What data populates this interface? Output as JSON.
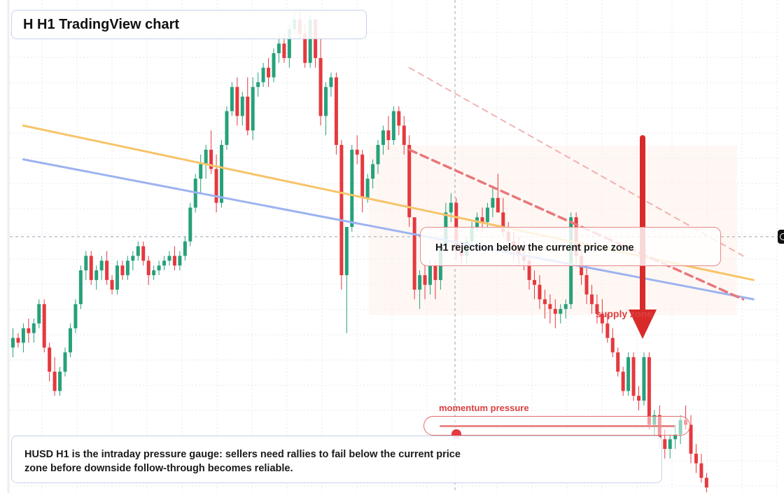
{
  "title": "H H1 TradingView chart",
  "callout": {
    "text": "H1 rejection below the current price zone"
  },
  "supply_label": "supply zone",
  "momentum": {
    "label": "momentum pressure",
    "level": 0.07
  },
  "summary": {
    "line1": "HUSD H1 is the intraday pressure gauge: sellers need rallies to fail below the current price",
    "line2": "zone before downside follow-through becomes reliable."
  },
  "colors": {
    "bull": "#26a17b",
    "bear": "#e5393e",
    "yellow_trendline": "#f6c46a",
    "blue_trendline": "#9db3f0",
    "dashed_channel": "#e8777a",
    "arrow": "#d92a2a"
  },
  "icons": {
    "edge_marker": "target-icon",
    "arrow": "down-arrow-icon"
  },
  "chart_data": {
    "type": "candlestick",
    "title": "",
    "xlabel": "",
    "ylabel": "",
    "ylim": [
      0,
      100
    ],
    "grid": true,
    "candles": [
      [
        30,
        34,
        28,
        32
      ],
      [
        32,
        33,
        30,
        31
      ],
      [
        31,
        35,
        29,
        34
      ],
      [
        34,
        36,
        31,
        33
      ],
      [
        33,
        36,
        31,
        35
      ],
      [
        35,
        40,
        34,
        39
      ],
      [
        39,
        40,
        29,
        30
      ],
      [
        30,
        31,
        23,
        25
      ],
      [
        25,
        28,
        20,
        21
      ],
      [
        21,
        26,
        20,
        25
      ],
      [
        25,
        30,
        24,
        29
      ],
      [
        29,
        35,
        28,
        34
      ],
      [
        34,
        40,
        33,
        39
      ],
      [
        39,
        47,
        38,
        46
      ],
      [
        46,
        50,
        44,
        49
      ],
      [
        49,
        50,
        43,
        44
      ],
      [
        44,
        47,
        42,
        46
      ],
      [
        46,
        49,
        44,
        48
      ],
      [
        48,
        50,
        43,
        44
      ],
      [
        44,
        45,
        41,
        42
      ],
      [
        42,
        48,
        41,
        47
      ],
      [
        47,
        48,
        44,
        45
      ],
      [
        45,
        49,
        44,
        48
      ],
      [
        48,
        50,
        46,
        49
      ],
      [
        49,
        52,
        48,
        51
      ],
      [
        51,
        52,
        47,
        48
      ],
      [
        48,
        49,
        43,
        45
      ],
      [
        45,
        47,
        44,
        46
      ],
      [
        46,
        48,
        45,
        47
      ],
      [
        47,
        49,
        46,
        48
      ],
      [
        48,
        50,
        47,
        49
      ],
      [
        49,
        51,
        46,
        47
      ],
      [
        47,
        50,
        46,
        49
      ],
      [
        49,
        53,
        48,
        52
      ],
      [
        52,
        60,
        51,
        59
      ],
      [
        59,
        66,
        58,
        65
      ],
      [
        65,
        70,
        62,
        68
      ],
      [
        68,
        72,
        65,
        71
      ],
      [
        71,
        75,
        66,
        67
      ],
      [
        67,
        70,
        58,
        60
      ],
      [
        60,
        73,
        59,
        72
      ],
      [
        72,
        80,
        71,
        79
      ],
      [
        79,
        85,
        78,
        84
      ],
      [
        84,
        86,
        76,
        78
      ],
      [
        78,
        83,
        76,
        82
      ],
      [
        82,
        86,
        74,
        75
      ],
      [
        75,
        86,
        73,
        84
      ],
      [
        84,
        87,
        82,
        85
      ],
      [
        85,
        89,
        84,
        88
      ],
      [
        88,
        90,
        84,
        86
      ],
      [
        86,
        92,
        85,
        91
      ],
      [
        91,
        95,
        89,
        93
      ],
      [
        93,
        95,
        89,
        90
      ],
      [
        90,
        97,
        88,
        96
      ],
      [
        96,
        100,
        95,
        98
      ],
      [
        98,
        100,
        94,
        95
      ],
      [
        95,
        97,
        88,
        89
      ],
      [
        89,
        99,
        88,
        98
      ],
      [
        98,
        98,
        88,
        90
      ],
      [
        90,
        94,
        76,
        78
      ],
      [
        78,
        85,
        74,
        84
      ],
      [
        84,
        87,
        82,
        86
      ],
      [
        86,
        87,
        70,
        72
      ],
      [
        72,
        73,
        42,
        45
      ],
      [
        45,
        55,
        33,
        55
      ],
      [
        55,
        72,
        54,
        71
      ],
      [
        71,
        74,
        68,
        70
      ],
      [
        70,
        71,
        58,
        61
      ],
      [
        61,
        66,
        60,
        65
      ],
      [
        65,
        69,
        63,
        68
      ],
      [
        68,
        73,
        66,
        72
      ],
      [
        72,
        76,
        70,
        75
      ],
      [
        75,
        78,
        71,
        73
      ],
      [
        73,
        80,
        72,
        79
      ],
      [
        79,
        80,
        74,
        76
      ],
      [
        76,
        78,
        70,
        72
      ],
      [
        72,
        74,
        55,
        57
      ],
      [
        57,
        57,
        40,
        42
      ],
      [
        42,
        46,
        38,
        45
      ],
      [
        45,
        47,
        40,
        43
      ],
      [
        43,
        48,
        41,
        47
      ],
      [
        47,
        48,
        40,
        44
      ],
      [
        44,
        52,
        42,
        51
      ],
      [
        51,
        60,
        50,
        58
      ],
      [
        58,
        62,
        56,
        60
      ],
      [
        60,
        61,
        48,
        50
      ],
      [
        50,
        52,
        47,
        49
      ],
      [
        49,
        53,
        47,
        52
      ],
      [
        52,
        56,
        51,
        55
      ],
      [
        55,
        58,
        54,
        57
      ],
      [
        57,
        59,
        54,
        56
      ],
      [
        56,
        60,
        55,
        59
      ],
      [
        59,
        63,
        57,
        61
      ],
      [
        61,
        66,
        59,
        58
      ],
      [
        58,
        61,
        53,
        54
      ],
      [
        54,
        56,
        50,
        52
      ],
      [
        52,
        54,
        48,
        51
      ],
      [
        51,
        53,
        47,
        49
      ],
      [
        49,
        52,
        46,
        48
      ],
      [
        48,
        50,
        42,
        44
      ],
      [
        44,
        46,
        40,
        43
      ],
      [
        43,
        45,
        38,
        40
      ],
      [
        40,
        42,
        36,
        39
      ],
      [
        39,
        41,
        35,
        38
      ],
      [
        38,
        40,
        34,
        37
      ],
      [
        37,
        39,
        35,
        38
      ],
      [
        38,
        40,
        36,
        39
      ],
      [
        39,
        58,
        38,
        57
      ],
      [
        57,
        58,
        47,
        49
      ],
      [
        49,
        51,
        43,
        45
      ],
      [
        45,
        47,
        39,
        41
      ],
      [
        41,
        43,
        37,
        39
      ],
      [
        39,
        41,
        35,
        37
      ],
      [
        37,
        40,
        33,
        35
      ],
      [
        35,
        37,
        31,
        32
      ],
      [
        32,
        34,
        28,
        29
      ],
      [
        29,
        30,
        24,
        25
      ],
      [
        25,
        26,
        20,
        21
      ],
      [
        21,
        29,
        20,
        28
      ],
      [
        28,
        29,
        19,
        20
      ],
      [
        20,
        22,
        17,
        19
      ],
      [
        19,
        29,
        18,
        28
      ],
      [
        28,
        29,
        13,
        14
      ],
      [
        14,
        17,
        11,
        16
      ],
      [
        16,
        18,
        9,
        11
      ],
      [
        11,
        13,
        7,
        9
      ],
      [
        9,
        12,
        7,
        11
      ],
      [
        11,
        14,
        9,
        12
      ],
      [
        12,
        16,
        10,
        15
      ],
      [
        15,
        18,
        13,
        14
      ],
      [
        14,
        16,
        6,
        8
      ],
      [
        8,
        10,
        4,
        6
      ],
      [
        6,
        8,
        2,
        3
      ],
      [
        3,
        4,
        0,
        1
      ]
    ],
    "overlays": [
      {
        "name": "",
        "style": "solid",
        "color": "yellow",
        "from": [
          2,
          76
        ],
        "to": [
          142,
          44
        ]
      },
      {
        "name": "",
        "style": "solid",
        "color": "blue",
        "from": [
          2,
          69
        ],
        "to": [
          142,
          40
        ]
      },
      {
        "name": "",
        "style": "dashed",
        "color": "red",
        "from": [
          76,
          71
        ],
        "to": [
          140,
          40
        ]
      },
      {
        "name": "",
        "style": "dashed-faint",
        "color": "red",
        "from": [
          76,
          88
        ],
        "to": [
          140,
          49
        ]
      }
    ]
  }
}
